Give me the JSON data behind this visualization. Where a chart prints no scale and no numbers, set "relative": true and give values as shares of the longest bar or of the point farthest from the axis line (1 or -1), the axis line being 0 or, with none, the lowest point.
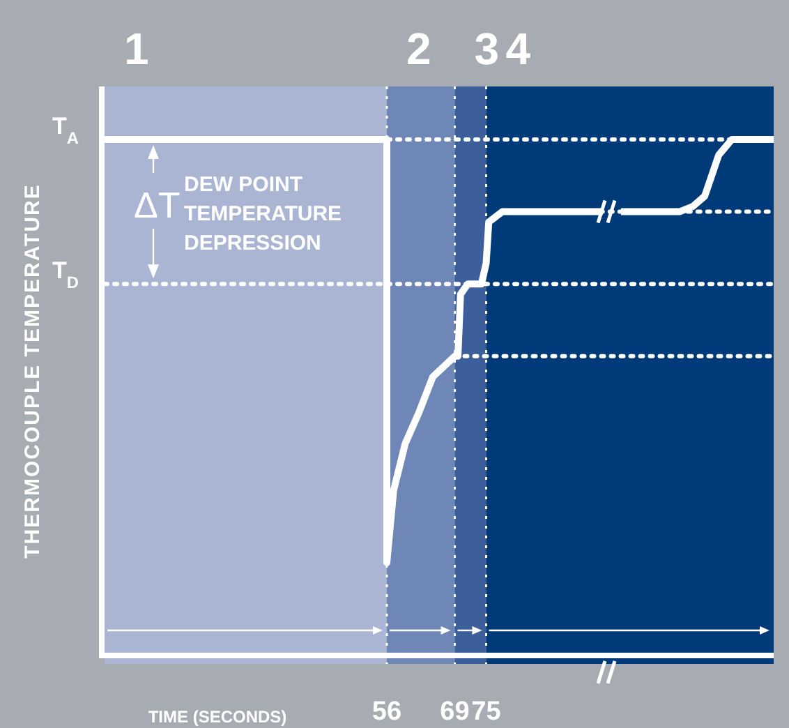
{
  "chart_data": {
    "type": "line",
    "relative": true,
    "xlabel": "TIME (SECONDS)",
    "ylabel": "THERMOCOUPLE TEMPERATURE",
    "xlim": [
      2,
      130
    ],
    "xticks": [
      56,
      69,
      75
    ],
    "tick_labels": "x",
    "x": [
      2,
      56,
      56,
      57.3,
      59.5,
      62.1,
      64.8,
      66.9,
      69,
      69.6,
      70.1,
      71.5,
      74.1,
      75,
      75.5,
      78.1,
      83.5,
      97.3,
      98,
      100.8,
      112,
      114.5,
      116.8,
      119.5,
      122,
      130
    ],
    "series": [
      {
        "color": "#ffffff",
        "values": [
          1,
          1,
          0.18,
          0.32,
          0.41,
          0.47,
          0.54,
          0.56,
          0.58,
          0.58,
          0.7,
          0.72,
          0.72,
          0.76,
          0.84,
          0.86,
          0.86,
          0.86,
          null,
          0.86,
          0.86,
          0.87,
          0.89,
          0.97,
          1,
          1
        ]
      }
    ],
    "bands": [
      {
        "axis": "x",
        "from": 2,
        "to": 56,
        "label": "1",
        "color": "#a9b5d2"
      },
      {
        "axis": "x",
        "from": 56,
        "to": 69,
        "label": "2",
        "color": "#6f87b6"
      },
      {
        "axis": "x",
        "from": 69,
        "to": 75,
        "label": "3",
        "color": "#3c5f9c"
      },
      {
        "axis": "x",
        "from": 75,
        "to": 130,
        "label": "4",
        "color": "#003a78"
      }
    ],
    "ref_lines": [
      {
        "axis": "y",
        "value": 1,
        "label": "T$_{A}$",
        "line_style": "dotted"
      },
      {
        "axis": "y",
        "value": 0.72,
        "label": "T$_{D}$",
        "line_style": "dotted"
      },
      {
        "axis": "y",
        "value": 0.58,
        "line_style": "dotted"
      },
      {
        "axis": "y",
        "value": 0.86,
        "line_style": "dotted"
      },
      {
        "axis": "x",
        "value": 56,
        "line_style": "dotted"
      },
      {
        "axis": "x",
        "value": 69,
        "line_style": "dotted"
      },
      {
        "axis": "x",
        "value": 75,
        "line_style": "dotted"
      }
    ],
    "annotations": [
      "ΔT",
      "DEW POINT TEMPERATURE DEPRESSION"
    ]
  }
}
